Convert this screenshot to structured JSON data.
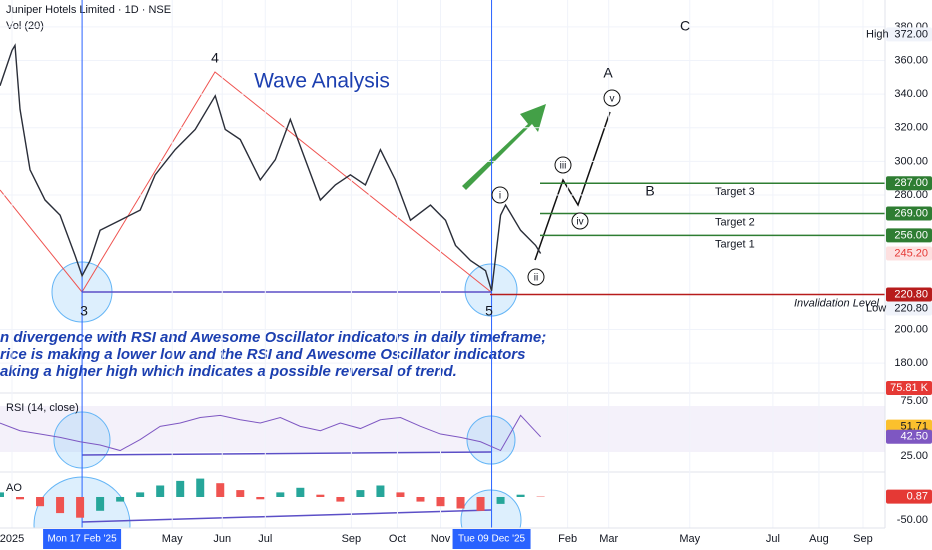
{
  "header": {
    "title": "Juniper Hotels Limited · 1D · NSE",
    "volume_label": "Vol (20)",
    "volume": {
      "value": 75810,
      "label": "75.81 K"
    }
  },
  "note": [
    "n divergence with RSI and Awesome Oscillator indicators in daily timeframe;",
    "rice is making a lower low and the RSI and Awesome Oscillator indicators",
    "aking a higher high which indicates a possible reversal of trend."
  ],
  "chart_data": [
    {
      "type": "line",
      "title": "Wave Analysis",
      "color": "#2a2e39",
      "x": [
        0,
        6,
        7.5,
        10,
        15,
        22.5,
        30,
        37.5,
        41,
        45,
        50,
        60,
        70,
        77.5,
        87.5,
        97.5,
        107.5,
        112.5,
        120,
        130,
        137.5,
        145,
        152.5,
        160,
        167.5,
        175,
        182.5,
        190,
        197.5,
        205,
        215,
        222.5,
        227.5,
        235,
        242.5,
        245.5,
        250,
        252.5,
        260,
        267.5,
        270
      ],
      "values": [
        345,
        366,
        369,
        331,
        295,
        277,
        268,
        244,
        232,
        241,
        259,
        265,
        271,
        292,
        307,
        319,
        339,
        319,
        313,
        289,
        301,
        325,
        301,
        277,
        286,
        292,
        286,
        307,
        289,
        265,
        274,
        265,
        250,
        241,
        235,
        223,
        268,
        274,
        259,
        250,
        245.2
      ],
      "xlim": [
        0,
        442
      ],
      "xticks": [
        {
          "value": 6,
          "label": "2025"
        },
        {
          "value": 86,
          "label": "May"
        },
        {
          "value": 111,
          "label": "Jun"
        },
        {
          "value": 132.5,
          "label": "Jul"
        },
        {
          "value": 175.5,
          "label": "Sep"
        },
        {
          "value": 198.5,
          "label": "Oct"
        },
        {
          "value": 220,
          "label": "Nov"
        },
        {
          "value": 283.5,
          "label": "Feb"
        },
        {
          "value": 304,
          "label": "Mar"
        },
        {
          "value": 344.5,
          "label": "May"
        },
        {
          "value": 386,
          "label": "Jul"
        },
        {
          "value": 409,
          "label": "Aug"
        },
        {
          "value": 431,
          "label": "Sep"
        }
      ],
      "crosshair_x": [
        {
          "value": 41,
          "label": "Mon 17 Feb '25"
        },
        {
          "value": 245.5,
          "label": "Tue 09 Dec '25"
        }
      ],
      "ylim": [
        164,
        396
      ],
      "yticks": [
        {
          "value": 380,
          "label": "380.00"
        },
        {
          "value": 360,
          "label": "360.00"
        },
        {
          "value": 340,
          "label": "340.00"
        },
        {
          "value": 320,
          "label": "320.00"
        },
        {
          "value": 300,
          "label": "300.00"
        },
        {
          "value": 280,
          "label": "280.00"
        },
        {
          "value": 200,
          "label": "200.00"
        },
        {
          "value": 180,
          "label": "180.00"
        }
      ],
      "levels": [
        {
          "name": "Target 3",
          "value": 287,
          "label": "287.00",
          "color": "#2e7d32"
        },
        {
          "name": "Target 2",
          "value": 269,
          "label": "269.00",
          "color": "#2e7d32"
        },
        {
          "name": "Target 1",
          "value": 256,
          "label": "256.00",
          "color": "#2e7d32"
        },
        {
          "name": "Invalidation Level",
          "value": 220.8,
          "label": "220.80",
          "color": "#b71c1c"
        }
      ],
      "last_price": {
        "value": 245.2,
        "label": "245.20"
      },
      "high": {
        "name": "High",
        "value": 372,
        "label": "372.00"
      },
      "low": {
        "name": "Low",
        "value": 220.8,
        "label": "220.80"
      },
      "wave_labels": [
        "3",
        "4",
        "5",
        "A",
        "B",
        "C",
        "i",
        "ii",
        "iii",
        "iv",
        "v"
      ]
    },
    {
      "type": "line",
      "title": "RSI (14, close)",
      "color": "#7e57c2",
      "x": [
        0,
        10,
        20,
        30,
        40,
        50,
        60,
        70,
        80,
        90,
        100,
        110,
        120,
        130,
        140,
        150,
        160,
        170,
        180,
        190,
        200,
        210,
        220,
        230,
        240,
        250,
        260,
        270
      ],
      "values": [
        55,
        48,
        45,
        42,
        38,
        35,
        30,
        40,
        52,
        55,
        60,
        62,
        58,
        55,
        60,
        52,
        48,
        55,
        50,
        58,
        60,
        52,
        45,
        42,
        38,
        30,
        62,
        42.5
      ],
      "ylim": [
        12.3,
        80.5
      ],
      "yticks": [
        {
          "value": 75,
          "label": "75.00"
        },
        {
          "value": 25,
          "label": "25.00"
        }
      ],
      "ma_value": 51.71,
      "last_value": {
        "value": 42.5,
        "label": "42.50"
      }
    },
    {
      "type": "bar",
      "title": "AO",
      "up_color": "#26a69a",
      "down_color": "#ef5350",
      "x": [
        0,
        10,
        20,
        30,
        40,
        50,
        60,
        70,
        80,
        90,
        100,
        110,
        120,
        130,
        140,
        150,
        160,
        170,
        180,
        190,
        200,
        210,
        220,
        230,
        240,
        250,
        260,
        270
      ],
      "values": [
        10,
        -5,
        -20,
        -35,
        -45,
        -30,
        -10,
        10,
        25,
        35,
        40,
        30,
        15,
        -5,
        10,
        20,
        5,
        -10,
        15,
        25,
        10,
        -10,
        -20,
        -25,
        -30,
        -15,
        5,
        0.87
      ],
      "ylim": [
        -67.4,
        47.8
      ],
      "yticks": [
        {
          "value": -50,
          "label": "-50.00"
        }
      ]
    }
  ]
}
